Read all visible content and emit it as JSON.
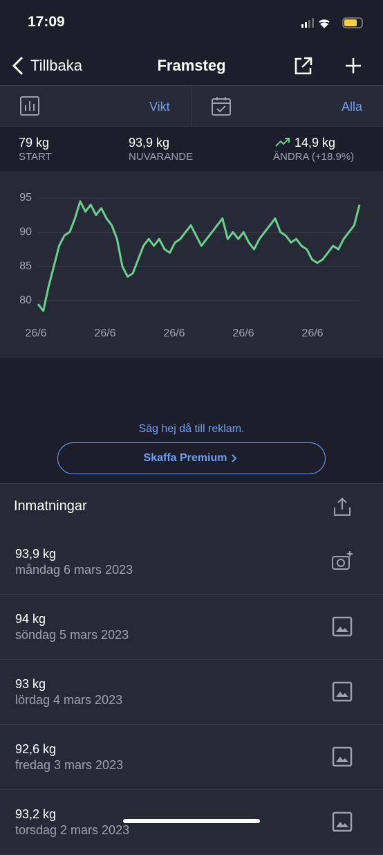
{
  "status_bar": {
    "time": "17:09"
  },
  "nav": {
    "back": "Tillbaka",
    "title": "Framsteg"
  },
  "filters": {
    "metric": "Vikt",
    "range": "Alla"
  },
  "stats": {
    "start_value": "79 kg",
    "start_label": "START",
    "current_value": "93,9 kg",
    "current_label": "NUVARANDE",
    "change_value": "14,9 kg",
    "change_label": "ÄNDRA (+18.9%)"
  },
  "chart_data": {
    "type": "line",
    "x_labels": [
      "26/6",
      "26/6",
      "26/6",
      "26/6",
      "26/6"
    ],
    "color": "#6ccf8d",
    "values": [
      79.5,
      78.5,
      82,
      85,
      88,
      89.5,
      90,
      92,
      94.5,
      93,
      94,
      92.5,
      93.5,
      92,
      91,
      89,
      85,
      83.5,
      84,
      86,
      88,
      89,
      88,
      89,
      87.5,
      87,
      88.5,
      89,
      90,
      91,
      89.5,
      88,
      89,
      90,
      91,
      92,
      89,
      90,
      89,
      90,
      88.5,
      87.5,
      89,
      90,
      91,
      92,
      90,
      89.5,
      88.5,
      89,
      88,
      87.5,
      86,
      85.5,
      86,
      87,
      88,
      87.5,
      89,
      90,
      91,
      94
    ],
    "ylim": [
      78,
      96
    ],
    "yticks": [
      80,
      85,
      90,
      95
    ],
    "grid": true
  },
  "ad": {
    "text": "Säg hej då till reklam.",
    "button": "Skaffa Premium"
  },
  "entries": {
    "title": "Inmatningar",
    "items": [
      {
        "value": "93,9 kg",
        "date": "måndag 6 mars 2023"
      },
      {
        "value": "94 kg",
        "date": "söndag 5 mars 2023"
      },
      {
        "value": "93 kg",
        "date": "lördag 4 mars 2023"
      },
      {
        "value": "92,6 kg",
        "date": "fredag 3 mars 2023"
      },
      {
        "value": "93,2 kg",
        "date": "torsdag 2 mars 2023"
      }
    ]
  }
}
